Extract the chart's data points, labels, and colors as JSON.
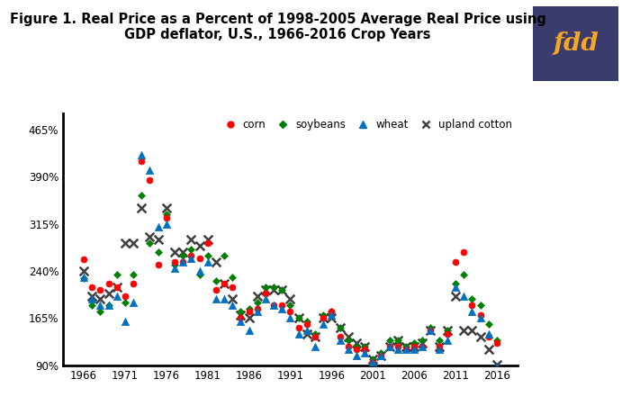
{
  "title": "Figure 1. Real Price as a Percent of 1998-2005 Average Real Price using\nGDP deflator, U.S., 1966-2016 Crop Years",
  "title_fontsize": 10.5,
  "fdd_bg": "#3b3c6e",
  "fdd_text": "#f5a623",
  "ylim": [
    90,
    490
  ],
  "yticks": [
    90,
    165,
    240,
    315,
    390,
    465
  ],
  "ytick_labels": [
    "90%",
    "165%",
    "240%",
    "315%",
    "390%",
    "465%"
  ],
  "xticks": [
    1966,
    1971,
    1976,
    1981,
    1986,
    1991,
    1996,
    2001,
    2006,
    2011,
    2016
  ],
  "corn": {
    "years": [
      1966,
      1967,
      1968,
      1969,
      1970,
      1971,
      1972,
      1973,
      1974,
      1975,
      1976,
      1977,
      1978,
      1979,
      1980,
      1981,
      1982,
      1983,
      1984,
      1985,
      1986,
      1987,
      1988,
      1989,
      1990,
      1991,
      1992,
      1993,
      1994,
      1995,
      1996,
      1997,
      1998,
      1999,
      2000,
      2001,
      2002,
      2003,
      2004,
      2005,
      2006,
      2007,
      2008,
      2009,
      2010,
      2011,
      2012,
      2013,
      2014,
      2015,
      2016
    ],
    "values": [
      258,
      215,
      210,
      220,
      215,
      200,
      220,
      415,
      385,
      250,
      325,
      255,
      255,
      265,
      260,
      285,
      210,
      220,
      215,
      165,
      175,
      180,
      205,
      185,
      185,
      175,
      150,
      155,
      135,
      165,
      175,
      135,
      120,
      115,
      115,
      95,
      105,
      120,
      120,
      115,
      120,
      120,
      145,
      120,
      140,
      255,
      270,
      185,
      170,
      135,
      125
    ],
    "color": "#ff0000",
    "marker": "o",
    "label": "corn"
  },
  "soybeans": {
    "years": [
      1966,
      1967,
      1968,
      1969,
      1970,
      1971,
      1972,
      1973,
      1974,
      1975,
      1976,
      1977,
      1978,
      1979,
      1980,
      1981,
      1982,
      1983,
      1984,
      1985,
      1986,
      1987,
      1988,
      1989,
      1990,
      1991,
      1992,
      1993,
      1994,
      1995,
      1996,
      1997,
      1998,
      1999,
      2000,
      2001,
      2002,
      2003,
      2004,
      2005,
      2006,
      2007,
      2008,
      2009,
      2010,
      2011,
      2012,
      2013,
      2014,
      2015,
      2016
    ],
    "values": [
      228,
      185,
      175,
      185,
      235,
      190,
      235,
      360,
      285,
      270,
      330,
      250,
      265,
      275,
      235,
      265,
      225,
      265,
      230,
      175,
      180,
      190,
      215,
      215,
      210,
      185,
      165,
      160,
      140,
      170,
      175,
      150,
      130,
      120,
      120,
      100,
      110,
      130,
      130,
      120,
      125,
      130,
      150,
      130,
      145,
      220,
      235,
      195,
      185,
      155,
      130
    ],
    "color": "#008000",
    "marker": "D",
    "label": "soybeans"
  },
  "wheat": {
    "years": [
      1966,
      1967,
      1968,
      1969,
      1970,
      1971,
      1972,
      1973,
      1974,
      1975,
      1976,
      1977,
      1978,
      1979,
      1980,
      1981,
      1982,
      1983,
      1984,
      1985,
      1986,
      1987,
      1988,
      1989,
      1990,
      1991,
      1992,
      1993,
      1994,
      1995,
      1996,
      1997,
      1998,
      1999,
      2000,
      2001,
      2002,
      2003,
      2004,
      2005,
      2006,
      2007,
      2008,
      2009,
      2010,
      2011,
      2012,
      2013,
      2014,
      2015,
      2016
    ],
    "values": [
      230,
      195,
      185,
      185,
      200,
      160,
      190,
      425,
      400,
      310,
      315,
      245,
      255,
      260,
      240,
      255,
      195,
      195,
      185,
      160,
      145,
      175,
      195,
      185,
      180,
      165,
      140,
      145,
      120,
      155,
      170,
      130,
      115,
      105,
      110,
      95,
      105,
      120,
      115,
      115,
      115,
      120,
      145,
      115,
      130,
      215,
      200,
      175,
      165,
      140,
      88
    ],
    "color": "#0070c0",
    "marker": "^",
    "label": "wheat"
  },
  "cotton": {
    "years": [
      1966,
      1967,
      1968,
      1969,
      1970,
      1971,
      1972,
      1973,
      1974,
      1975,
      1976,
      1977,
      1978,
      1979,
      1980,
      1981,
      1982,
      1983,
      1984,
      1985,
      1986,
      1987,
      1988,
      1989,
      1990,
      1991,
      1992,
      1993,
      1994,
      1995,
      1996,
      1997,
      1998,
      1999,
      2000,
      2001,
      2002,
      2003,
      2004,
      2005,
      2006,
      2007,
      2008,
      2009,
      2010,
      2011,
      2012,
      2013,
      2014,
      2015,
      2016
    ],
    "values": [
      240,
      200,
      195,
      205,
      215,
      285,
      285,
      340,
      295,
      290,
      340,
      270,
      270,
      290,
      280,
      290,
      255,
      220,
      195,
      170,
      165,
      200,
      210,
      210,
      210,
      195,
      165,
      140,
      135,
      165,
      165,
      150,
      135,
      125,
      120,
      100,
      105,
      120,
      130,
      120,
      120,
      125,
      145,
      120,
      145,
      200,
      145,
      145,
      135,
      115,
      92
    ],
    "color": "#404040",
    "marker": "x",
    "label": "upland cotton"
  },
  "background_color": "#ffffff"
}
